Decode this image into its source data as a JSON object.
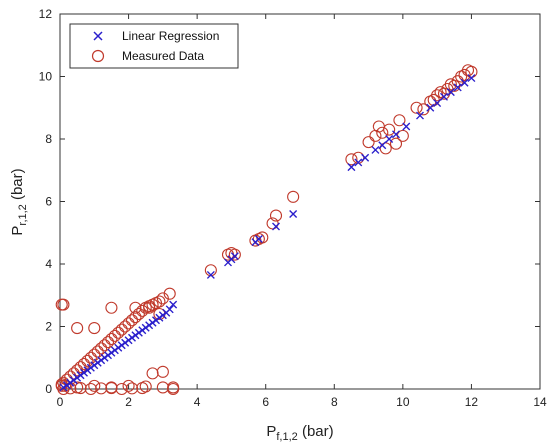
{
  "chart_data": {
    "type": "scatter",
    "xlabel_main": "P",
    "xlabel_sub": "f,1,2",
    "xlabel_unit": " (bar)",
    "ylabel_main": "P",
    "ylabel_sub": "r,1,2",
    "ylabel_unit": " (bar)",
    "xlim": [
      0,
      14
    ],
    "ylim": [
      0,
      12
    ],
    "xticks": [
      0,
      2,
      4,
      6,
      8,
      10,
      12,
      14
    ],
    "yticks": [
      0,
      2,
      4,
      6,
      8,
      10,
      12
    ],
    "grid": false,
    "legend_placement": "top-left",
    "series": [
      {
        "name": "Linear Regression",
        "marker": "x",
        "color": "#2a1fcc",
        "x": [
          0.1,
          0.2,
          0.3,
          0.4,
          0.5,
          0.6,
          0.7,
          0.8,
          0.9,
          1.0,
          1.1,
          1.2,
          1.3,
          1.4,
          1.5,
          1.6,
          1.7,
          1.8,
          1.9,
          2.0,
          2.1,
          2.2,
          2.3,
          2.4,
          2.5,
          2.6,
          2.7,
          2.8,
          2.9,
          3.0,
          3.1,
          3.2,
          3.3,
          4.4,
          4.9,
          5.0,
          5.1,
          5.7,
          5.8,
          6.3,
          6.8,
          8.5,
          8.7,
          8.9,
          9.2,
          9.4,
          9.6,
          9.8,
          10.1,
          10.5,
          10.8,
          11.0,
          11.2,
          11.4,
          11.6,
          11.8,
          12.0
        ],
        "y": [
          0.05,
          0.12,
          0.2,
          0.28,
          0.36,
          0.44,
          0.52,
          0.6,
          0.68,
          0.76,
          0.84,
          0.92,
          1.0,
          1.08,
          1.16,
          1.24,
          1.32,
          1.4,
          1.48,
          1.56,
          1.64,
          1.72,
          1.8,
          1.88,
          1.96,
          2.04,
          2.12,
          2.2,
          2.28,
          2.36,
          2.44,
          2.55,
          2.7,
          3.65,
          4.05,
          4.15,
          4.25,
          4.7,
          4.8,
          5.2,
          5.6,
          7.1,
          7.25,
          7.4,
          7.65,
          7.8,
          8.0,
          8.15,
          8.4,
          8.75,
          9.0,
          9.15,
          9.35,
          9.5,
          9.65,
          9.8,
          9.95
        ]
      },
      {
        "name": "Measured Data",
        "marker": "circle",
        "color": "#c0392b",
        "x": [
          0.05,
          0.1,
          0.2,
          0.3,
          0.4,
          0.5,
          0.6,
          0.7,
          0.8,
          0.9,
          1.0,
          1.1,
          1.2,
          1.3,
          1.4,
          1.5,
          1.6,
          1.7,
          1.8,
          1.9,
          2.0,
          2.1,
          2.2,
          2.3,
          2.4,
          2.5,
          2.6,
          2.7,
          2.8,
          2.9,
          3.0,
          3.2,
          0.05,
          0.15,
          0.5,
          1.0,
          1.5,
          2.0,
          2.5,
          3.0,
          3.3,
          0.1,
          0.3,
          0.6,
          0.9,
          1.2,
          1.5,
          1.8,
          2.1,
          2.4,
          2.7,
          3.0,
          3.3,
          0.05,
          0.1,
          0.5,
          1.0,
          1.5,
          2.2,
          2.6,
          2.9,
          4.4,
          4.9,
          5.0,
          5.1,
          5.7,
          5.8,
          5.9,
          6.2,
          6.3,
          6.8,
          8.5,
          8.7,
          9.0,
          9.2,
          9.3,
          9.4,
          9.5,
          9.6,
          9.8,
          9.9,
          10.0,
          10.4,
          10.6,
          10.8,
          11.0,
          11.1,
          11.3,
          11.4,
          11.6,
          11.7,
          11.8,
          11.9,
          12.0,
          11.5,
          11.2,
          10.9
        ],
        "y": [
          0.1,
          0.2,
          0.3,
          0.4,
          0.5,
          0.6,
          0.7,
          0.8,
          0.9,
          1.0,
          1.1,
          1.2,
          1.3,
          1.4,
          1.5,
          1.6,
          1.7,
          1.8,
          1.9,
          2.0,
          2.1,
          2.2,
          2.3,
          2.4,
          2.5,
          2.6,
          2.65,
          2.7,
          2.75,
          2.8,
          2.9,
          3.05,
          0.15,
          0.1,
          0.05,
          0.1,
          0.05,
          0.1,
          0.08,
          0.05,
          0.05,
          0.0,
          0.02,
          0.03,
          0.0,
          0.02,
          0.03,
          0.0,
          0.02,
          0.03,
          0.5,
          0.55,
          0.0,
          2.7,
          2.7,
          1.95,
          1.95,
          2.6,
          2.6,
          2.6,
          2.4,
          3.8,
          4.3,
          4.35,
          4.3,
          4.75,
          4.8,
          4.85,
          5.3,
          5.55,
          6.15,
          7.35,
          7.4,
          7.9,
          8.1,
          8.4,
          8.2,
          7.7,
          8.3,
          7.85,
          8.6,
          8.1,
          9.0,
          8.95,
          9.2,
          9.4,
          9.5,
          9.6,
          9.75,
          9.85,
          10.0,
          10.05,
          10.2,
          10.15,
          9.7,
          9.45,
          9.25
        ]
      }
    ]
  }
}
